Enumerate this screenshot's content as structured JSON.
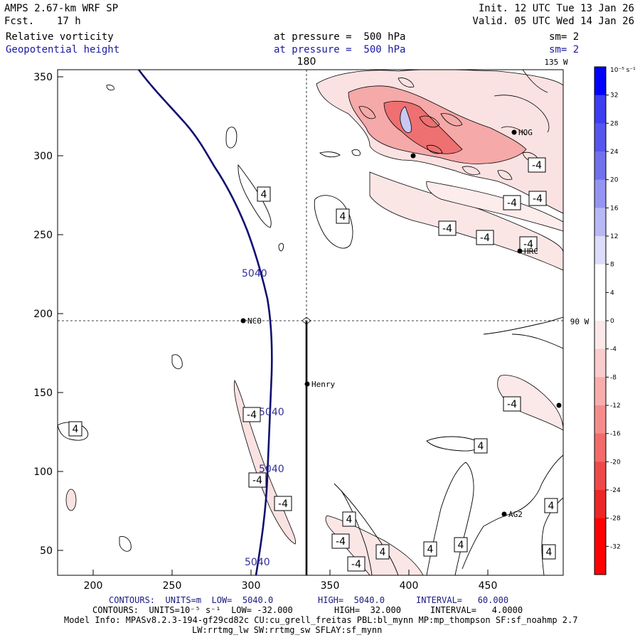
{
  "header": {
    "model": "AMPS 2.67-km WRF SP",
    "fcst_label": "Fcst.",
    "fcst_value": "17 h",
    "init": "Init. 12 UTC Tue 13 Jan 26",
    "valid": "Valid. 05 UTC Wed 14 Jan 26",
    "field1": "Relative vorticity",
    "field1_pressure": "at pressure =  500 hPa",
    "field1_sm": "sm= 2",
    "field2": "Geopotential height",
    "field2_pressure": "at pressure =  500 hPa",
    "field2_sm": "sm= 2"
  },
  "map": {
    "x_ticks": [
      "200",
      "250",
      "300",
      "350",
      "400",
      "450"
    ],
    "y_ticks": [
      "350",
      "300",
      "250",
      "200",
      "150",
      "100",
      "50"
    ],
    "lon_labels": {
      "top_left": "180",
      "top_right": "135 W",
      "right": "90 W"
    },
    "stations": [
      "NCO",
      "Henry",
      "HOG",
      "HRC",
      "AG2"
    ],
    "vort_labels": [
      "4",
      "4",
      "4",
      "4",
      "4",
      "4",
      "4",
      "4",
      "4",
      "4",
      "-4",
      "-4",
      "-4",
      "-4",
      "-4",
      "-4",
      "-4",
      "-4",
      "-4",
      "-4",
      "-4",
      "-4"
    ],
    "height_labels": [
      "5040",
      "5040",
      "5040",
      "5040"
    ]
  },
  "colorbar": {
    "unit": "10⁻⁵ s⁻¹",
    "ticks": [
      "32",
      "28",
      "24",
      "20",
      "16",
      "12",
      "8",
      "4",
      "0",
      "-4",
      "-8",
      "-12",
      "-16",
      "-20",
      "-24",
      "-28",
      "-32"
    ],
    "colors": [
      "#0000ff",
      "#3d3df2",
      "#5656ee",
      "#7171ee",
      "#9494f2",
      "#b8b8f6",
      "#dcdcfb",
      "#ffffff",
      "#ffffff",
      "#fde8e8",
      "#fbcccc",
      "#f8adad",
      "#f58c8c",
      "#f26a6a",
      "#ef4848",
      "#ec2626",
      "#ff0000"
    ]
  },
  "footer": {
    "line1_a": "CONTOURS:  UNITS=m  LOW=  5040.0",
    "line1_b": "HIGH=  5040.0",
    "line1_c": "INTERVAL=   60.000",
    "line2_a": "CONTOURS:  UNITS=10⁻⁵ s⁻¹  LOW= -32.000",
    "line2_b": "HIGH=  32.000",
    "line2_c": "INTERVAL=   4.0000",
    "line3": "Model Info: MPASv8.2.3-194-gf29cd82c CU:cu_grell_freitas PBL:bl_mynn MP:mp_thompson SF:sf_noahmp 2.7",
    "line4": "LW:rrtmg_lw SW:rrtmg_sw SFLAY:sf_mynn"
  }
}
